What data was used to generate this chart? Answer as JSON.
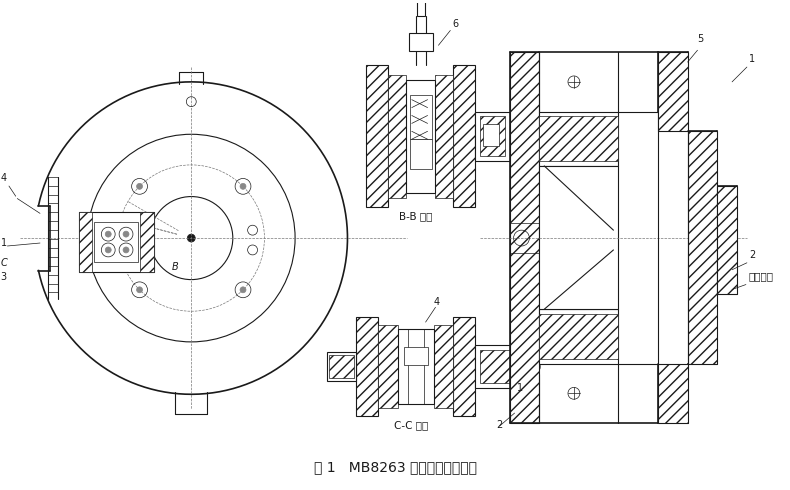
{
  "title": "图 1   MB8263 曲轴磨床分度机构",
  "background_color": "#ffffff",
  "line_color": "#1a1a1a",
  "fig_width": 7.9,
  "fig_height": 4.9,
  "dpi": 100,
  "labels": {
    "BB": "B-B 旋转",
    "CC": "C-C 旋转",
    "chuck": "圆爪卡盘"
  }
}
